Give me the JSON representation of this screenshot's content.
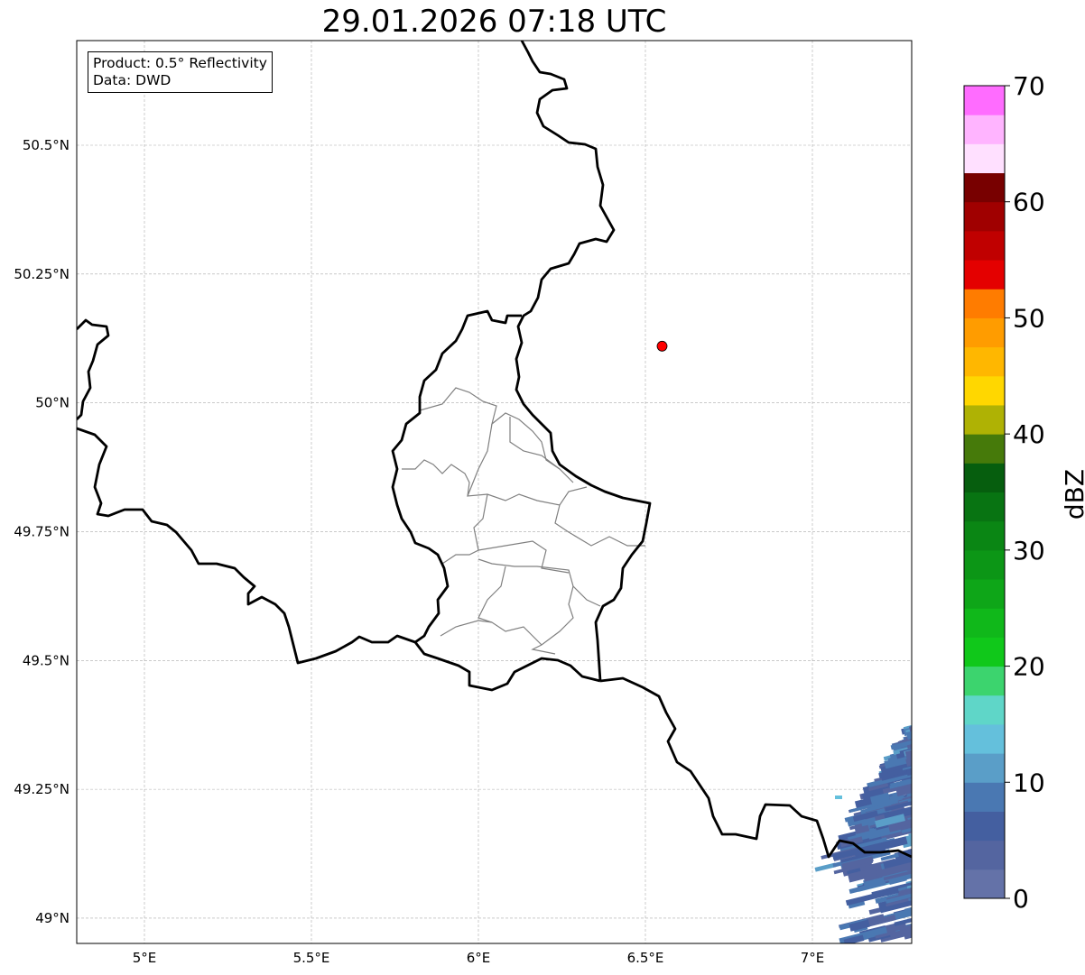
{
  "title": "29.01.2026 07:18 UTC",
  "info_box": {
    "product": "Product: 0.5° Reflectivity",
    "source": "Data: DWD"
  },
  "axes": {
    "lon_ticks": [
      {
        "lon": 5.0,
        "label": "5°E"
      },
      {
        "lon": 5.5,
        "label": "5.5°E"
      },
      {
        "lon": 6.0,
        "label": "6°E"
      },
      {
        "lon": 6.5,
        "label": "6.5°E"
      },
      {
        "lon": 7.0,
        "label": "7°E"
      }
    ],
    "lat_ticks": [
      {
        "lat": 50.5,
        "label": "50.5°N"
      },
      {
        "lat": 50.25,
        "label": "50.25°N"
      },
      {
        "lat": 50.0,
        "label": "50°N"
      },
      {
        "lat": 49.75,
        "label": "49.75°N"
      },
      {
        "lat": 49.5,
        "label": "49.5°N"
      },
      {
        "lat": 49.25,
        "label": "49.25°N"
      },
      {
        "lat": 49.0,
        "label": "49°N"
      }
    ]
  },
  "radar_site": {
    "lon": 6.55,
    "lat": 50.11,
    "color": "#ff0000"
  },
  "colorbar": {
    "label": "dBZ",
    "min": 0,
    "max": 70,
    "step": 2.5,
    "ticks": [
      "0",
      "10",
      "20",
      "30",
      "40",
      "50",
      "60",
      "70"
    ],
    "colors": [
      "#6472a8",
      "#5465a0",
      "#445fa0",
      "#4a78b2",
      "#5a9ec8",
      "#64c0dc",
      "#5fd6c8",
      "#3cd46e",
      "#10c81a",
      "#10b81a",
      "#0ea618",
      "#0c9616",
      "#0a8614",
      "#087412",
      "#065e0e",
      "#467a0a",
      "#afb204",
      "#ffd700",
      "#ffb700",
      "#ff9c00",
      "#ff7c00",
      "#e40000",
      "#c00000",
      "#a00000",
      "#780000",
      "#ffe0ff",
      "#ffb4ff",
      "#ff6cff",
      "#e838ee"
    ]
  }
}
